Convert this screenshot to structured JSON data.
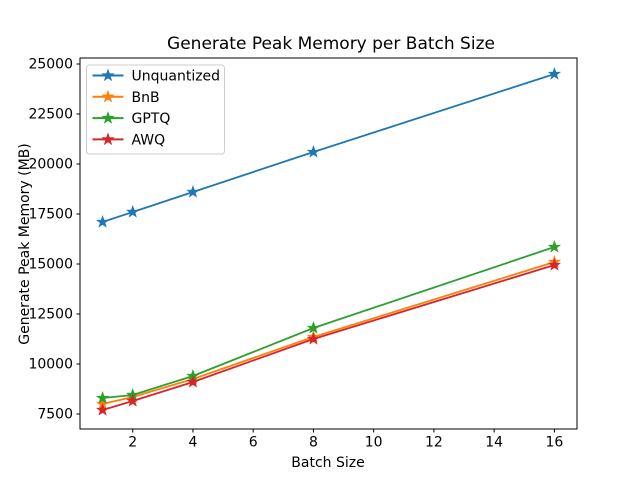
{
  "title": "Generate Peak Memory per Batch Size",
  "chart_data": {
    "type": "line",
    "title": "Generate Peak Memory per Batch Size",
    "xlabel": "Batch Size",
    "ylabel": "Generate Peak Memory (MB)",
    "x": [
      1,
      2,
      4,
      8,
      16
    ],
    "series": [
      {
        "name": "Unquantized",
        "color": "#1f77b4",
        "values": [
          17100,
          17600,
          18600,
          20600,
          24500
        ]
      },
      {
        "name": "BnB",
        "color": "#ff7f0e",
        "values": [
          8000,
          8350,
          9250,
          11350,
          15100
        ]
      },
      {
        "name": "GPTQ",
        "color": "#2ca02c",
        "values": [
          8300,
          8450,
          9400,
          11800,
          15850
        ]
      },
      {
        "name": "AWQ",
        "color": "#d62728",
        "values": [
          7700,
          8150,
          9100,
          11250,
          14950
        ]
      }
    ],
    "xticks": [
      2,
      4,
      6,
      8,
      10,
      12,
      14,
      16
    ],
    "yticks": [
      7500,
      10000,
      12500,
      15000,
      17500,
      20000,
      22500,
      25000
    ],
    "xlim": [
      0.25,
      16.75
    ],
    "ylim": [
      6750,
      25300
    ],
    "marker": "star",
    "grid": false,
    "legend_position": "upper left",
    "legend_frame_color": "#cccccc",
    "spine_color": "#000000"
  }
}
